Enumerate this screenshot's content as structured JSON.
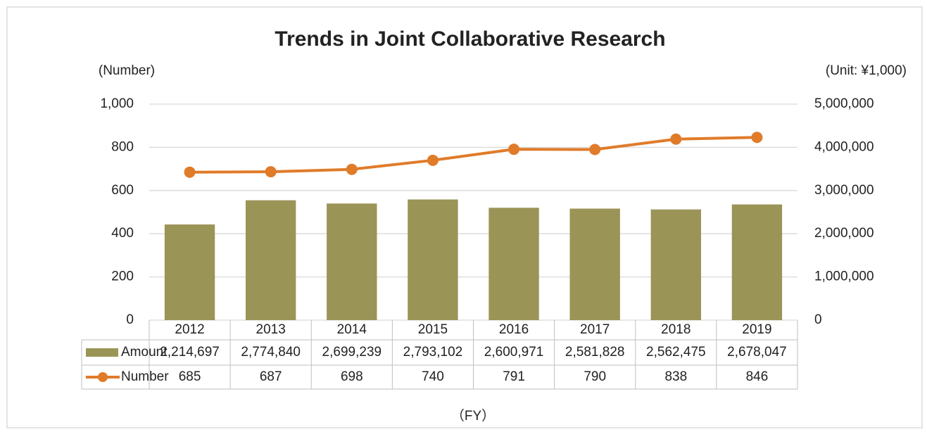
{
  "chart_data": {
    "type": "bar",
    "title": "Trends in Joint Collaborative Research",
    "y_label": "(Number)",
    "y2_label": "(Unit: ¥1,000)",
    "x_label": "（FY）",
    "categories": [
      "2012",
      "2013",
      "2014",
      "2015",
      "2016",
      "2017",
      "2018",
      "2019"
    ],
    "series": [
      {
        "name": "Amount",
        "type": "bar",
        "axis": "y2",
        "color": "#9b9457",
        "values": [
          2214697,
          2774840,
          2699239,
          2793102,
          2600971,
          2581828,
          2562475,
          2678047
        ],
        "value_labels": [
          "2,214,697",
          "2,774,840",
          "2,699,239",
          "2,793,102",
          "2,600,971",
          "2,581,828",
          "2,562,475",
          "2,678,047"
        ]
      },
      {
        "name": "Number",
        "type": "line",
        "color": "#e07b2a",
        "values": [
          685,
          687,
          698,
          740,
          791,
          790,
          838,
          846
        ]
      }
    ],
    "ylim": [
      0,
      1000
    ],
    "yticks": [
      0,
      200,
      400,
      600,
      800,
      {
        "value": 1000,
        "label": "1,000"
      }
    ],
    "y2lim": [
      0,
      5000000
    ],
    "y2ticks": [
      0,
      {
        "value": 1000000,
        "label": "1,000,000"
      },
      {
        "value": 2000000,
        "label": "2,000,000"
      },
      {
        "value": 3000000,
        "label": "3,000,000"
      },
      {
        "value": 4000000,
        "label": "4,000,000"
      },
      {
        "value": 5000000,
        "label": "5,000,000"
      }
    ],
    "grid": true
  }
}
